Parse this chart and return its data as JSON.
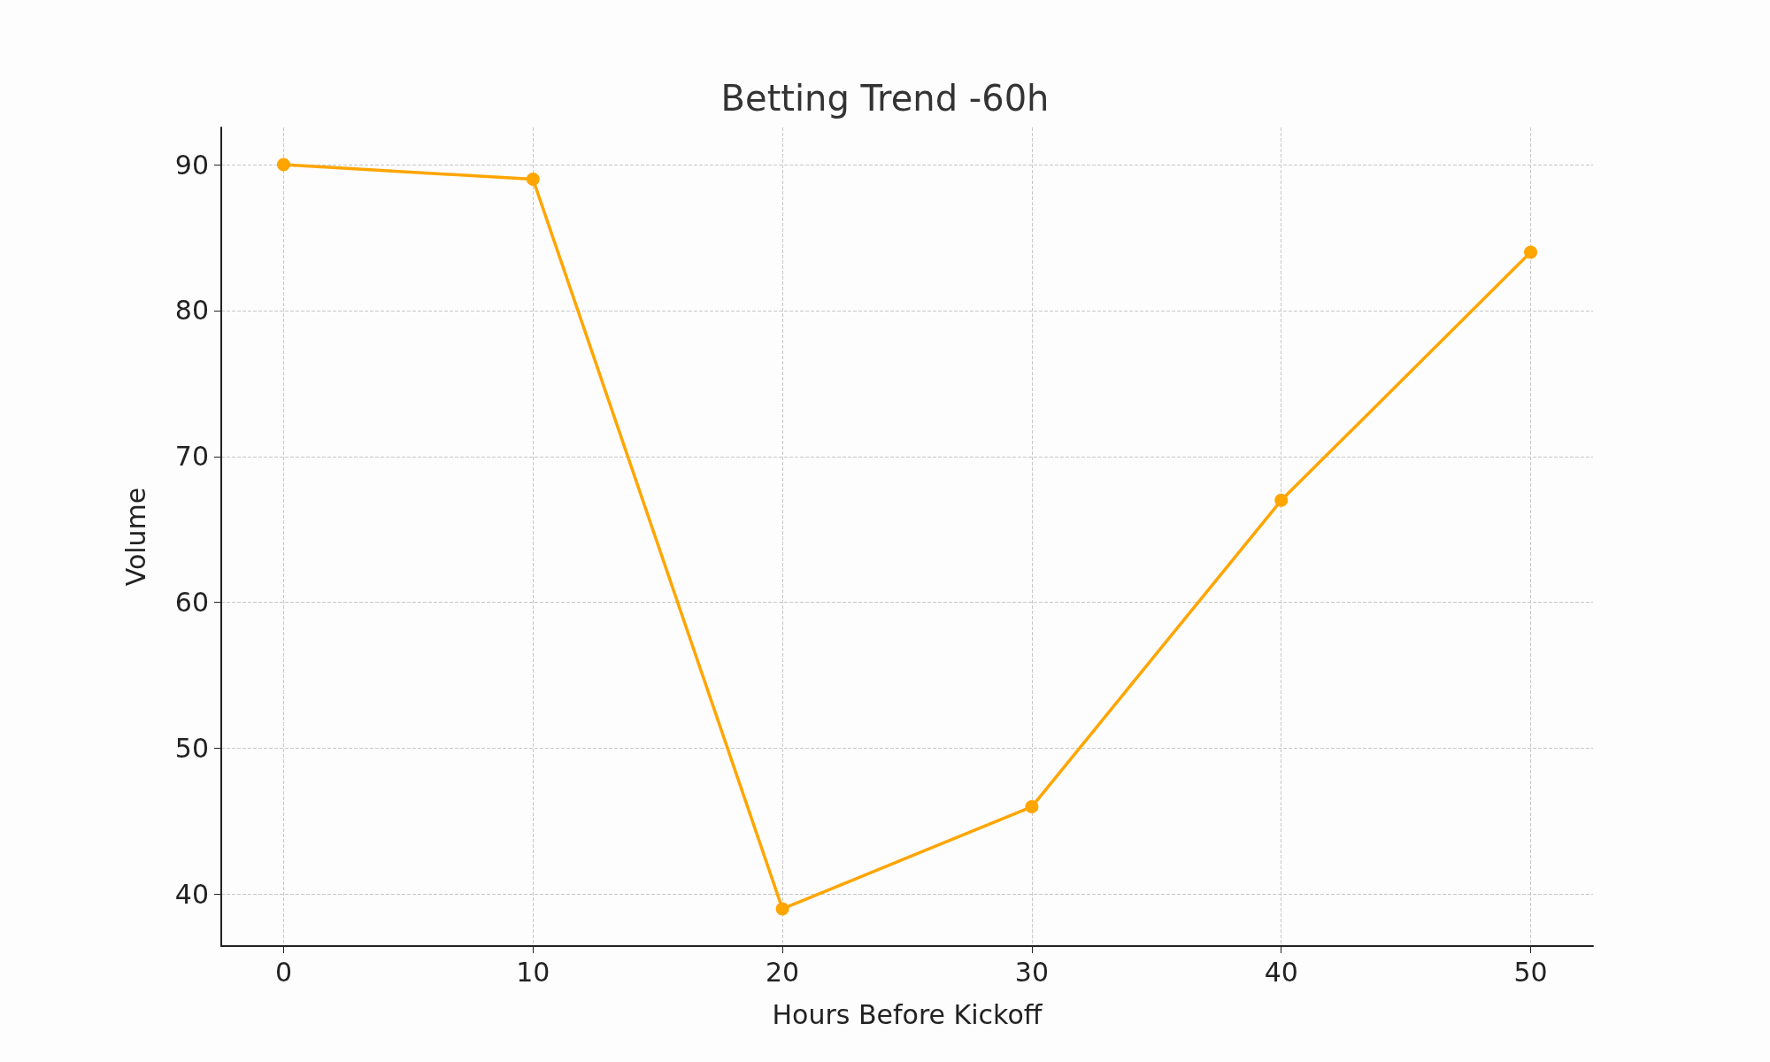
{
  "chart_data": {
    "type": "line",
    "title": "Betting Trend -60h",
    "xlabel": "Hours Before Kickoff",
    "ylabel": "Volume",
    "x": [
      0,
      10,
      20,
      30,
      40,
      50
    ],
    "series": [
      {
        "color": "#ffa500",
        "values": [
          90,
          89,
          39,
          46,
          67,
          84
        ]
      }
    ],
    "xlim": [
      -2.5,
      52.5
    ],
    "xticks": [
      0,
      10,
      20,
      30,
      40,
      50
    ],
    "ylim": [
      36.45,
      92.55
    ],
    "yticks": [
      40,
      50,
      60,
      70,
      80,
      90
    ],
    "grid": true,
    "marker": "circle",
    "line_style": "solid"
  }
}
